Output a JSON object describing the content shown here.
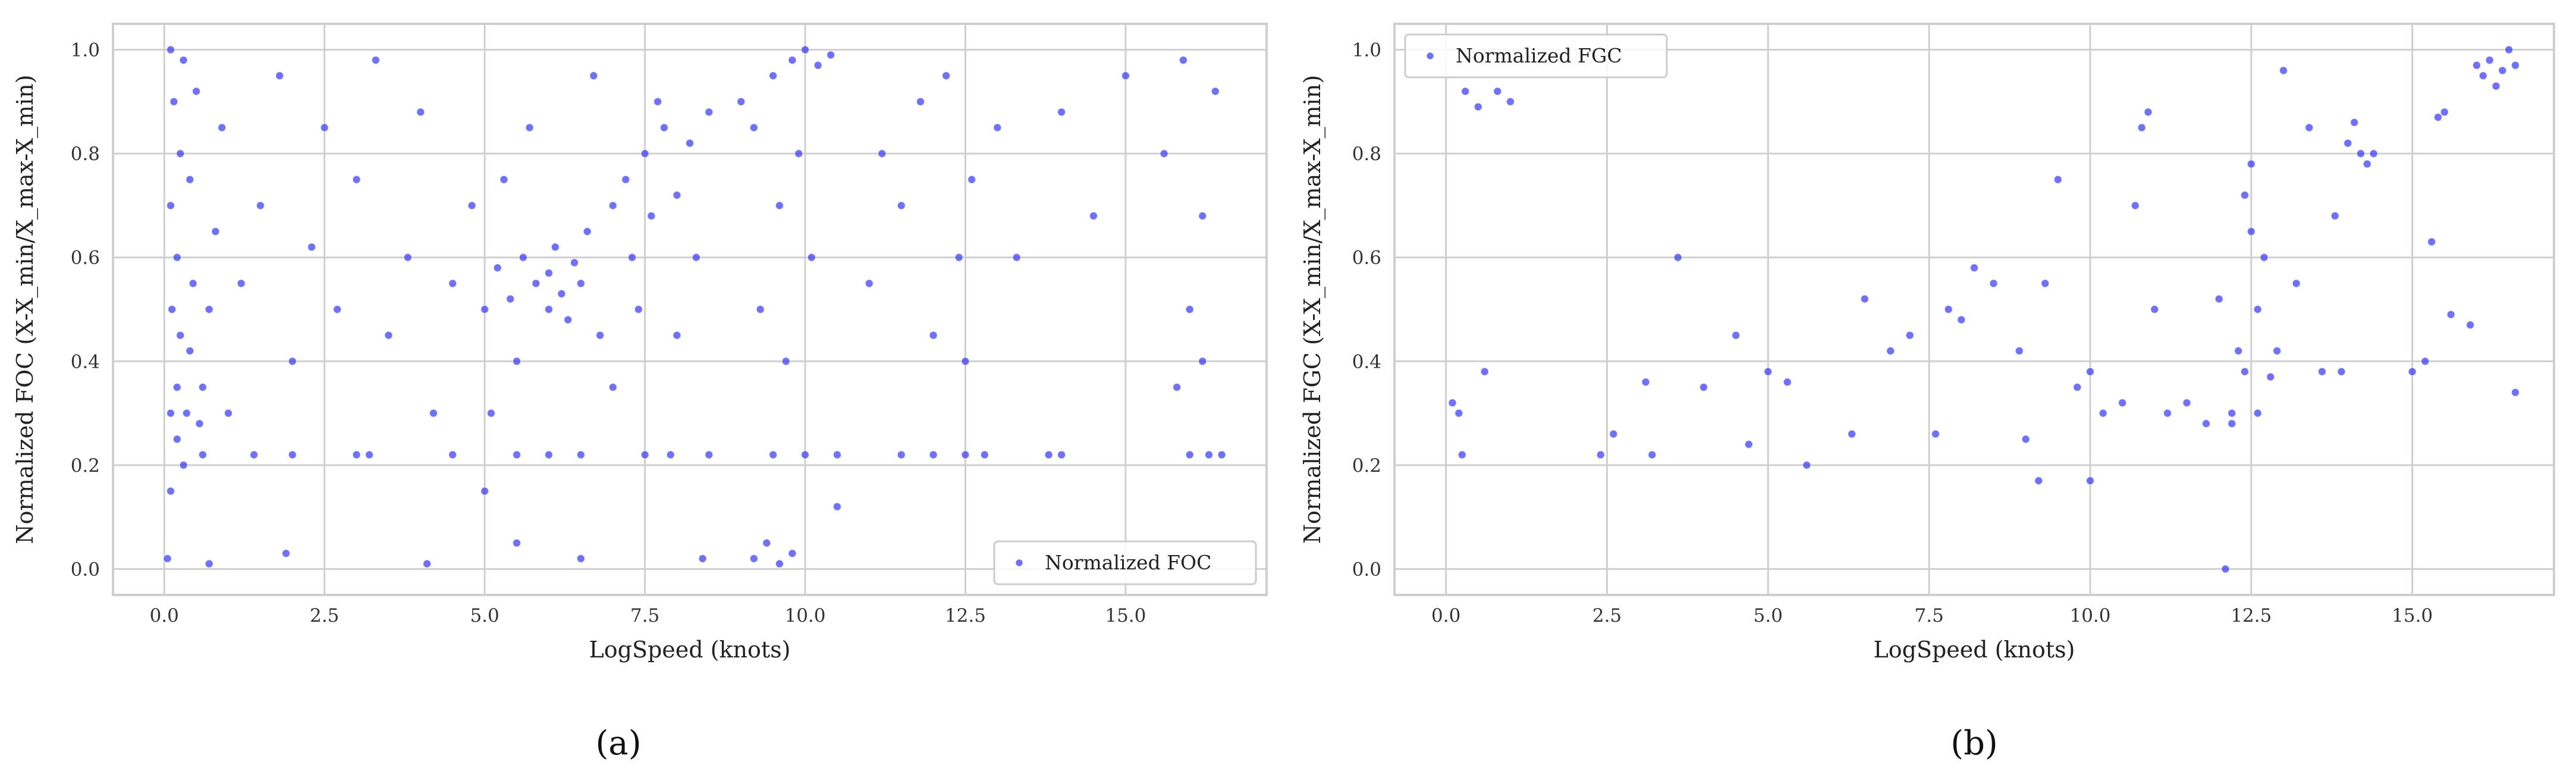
{
  "chart_data": [
    {
      "id": "a",
      "type": "scatter",
      "panel_label": "(a)",
      "title": "",
      "xlabel": "LogSpeed (knots)",
      "ylabel": "Normalized FOC (X-X_min/X_max-X_min)",
      "xlim": [
        -0.8,
        17.2
      ],
      "ylim": [
        -0.05,
        1.05
      ],
      "xticks": [
        "0.0",
        "2.5",
        "5.0",
        "7.5",
        "10.0",
        "12.5",
        "15.0"
      ],
      "yticks": [
        "0.0",
        "0.2",
        "0.4",
        "0.6",
        "0.8",
        "1.0"
      ],
      "grid": true,
      "legend": {
        "label": "Normalized FOC",
        "position": "lower-right"
      },
      "series": [
        {
          "name": "Normalized FOC",
          "points": [
            [
              0.05,
              0.02
            ],
            [
              0.1,
              0.15
            ],
            [
              0.1,
              0.3
            ],
            [
              0.12,
              0.5
            ],
            [
              0.1,
              0.7
            ],
            [
              0.15,
              0.9
            ],
            [
              0.1,
              1.0
            ],
            [
              0.2,
              0.25
            ],
            [
              0.2,
              0.35
            ],
            [
              0.25,
              0.45
            ],
            [
              0.2,
              0.6
            ],
            [
              0.25,
              0.8
            ],
            [
              0.3,
              0.98
            ],
            [
              0.3,
              0.2
            ],
            [
              0.35,
              0.3
            ],
            [
              0.4,
              0.42
            ],
            [
              0.45,
              0.55
            ],
            [
              0.4,
              0.75
            ],
            [
              0.5,
              0.92
            ],
            [
              0.55,
              0.28
            ],
            [
              0.6,
              0.35
            ],
            [
              0.7,
              0.5
            ],
            [
              0.8,
              0.65
            ],
            [
              0.9,
              0.85
            ],
            [
              0.6,
              0.22
            ],
            [
              0.7,
              0.01
            ],
            [
              1.0,
              0.3
            ],
            [
              1.2,
              0.55
            ],
            [
              1.5,
              0.7
            ],
            [
              1.8,
              0.95
            ],
            [
              2.0,
              0.4
            ],
            [
              2.3,
              0.62
            ],
            [
              2.5,
              0.85
            ],
            [
              1.4,
              0.22
            ],
            [
              1.9,
              0.03
            ],
            [
              2.7,
              0.5
            ],
            [
              3.0,
              0.75
            ],
            [
              3.3,
              0.98
            ],
            [
              3.5,
              0.45
            ],
            [
              3.8,
              0.6
            ],
            [
              4.0,
              0.88
            ],
            [
              4.2,
              0.3
            ],
            [
              4.5,
              0.55
            ],
            [
              4.8,
              0.7
            ],
            [
              3.2,
              0.22
            ],
            [
              4.1,
              0.01
            ],
            [
              5.0,
              0.5
            ],
            [
              5.2,
              0.58
            ],
            [
              5.4,
              0.52
            ],
            [
              5.6,
              0.6
            ],
            [
              5.8,
              0.55
            ],
            [
              6.0,
              0.5
            ],
            [
              6.0,
              0.57
            ],
            [
              6.1,
              0.62
            ],
            [
              6.2,
              0.53
            ],
            [
              6.3,
              0.48
            ],
            [
              6.4,
              0.59
            ],
            [
              6.5,
              0.55
            ],
            [
              6.6,
              0.65
            ],
            [
              6.8,
              0.45
            ],
            [
              7.0,
              0.7
            ],
            [
              5.5,
              0.4
            ],
            [
              5.3,
              0.75
            ],
            [
              5.7,
              0.85
            ],
            [
              6.7,
              0.95
            ],
            [
              5.0,
              0.15
            ],
            [
              5.5,
              0.05
            ],
            [
              6.0,
              0.22
            ],
            [
              6.5,
              0.02
            ],
            [
              5.1,
              0.3
            ],
            [
              7.2,
              0.75
            ],
            [
              7.5,
              0.8
            ],
            [
              7.6,
              0.68
            ],
            [
              7.8,
              0.85
            ],
            [
              7.3,
              0.6
            ],
            [
              7.7,
              0.9
            ],
            [
              8.0,
              0.72
            ],
            [
              8.2,
              0.82
            ],
            [
              8.5,
              0.88
            ],
            [
              7.4,
              0.5
            ],
            [
              8.0,
              0.45
            ],
            [
              8.3,
              0.6
            ],
            [
              7.9,
              0.22
            ],
            [
              8.4,
              0.02
            ],
            [
              7.0,
              0.35
            ],
            [
              9.0,
              0.9
            ],
            [
              9.2,
              0.85
            ],
            [
              9.5,
              0.95
            ],
            [
              9.8,
              0.98
            ],
            [
              10.0,
              1.0
            ],
            [
              10.2,
              0.97
            ],
            [
              10.4,
              0.99
            ],
            [
              9.6,
              0.7
            ],
            [
              9.9,
              0.8
            ],
            [
              10.1,
              0.6
            ],
            [
              9.3,
              0.5
            ],
            [
              9.7,
              0.4
            ],
            [
              9.2,
              0.02
            ],
            [
              9.4,
              0.05
            ],
            [
              9.6,
              0.01
            ],
            [
              9.8,
              0.03
            ],
            [
              10.0,
              0.22
            ],
            [
              10.5,
              0.12
            ],
            [
              11.0,
              0.55
            ],
            [
              11.2,
              0.8
            ],
            [
              11.5,
              0.7
            ],
            [
              11.8,
              0.9
            ],
            [
              12.0,
              0.45
            ],
            [
              12.2,
              0.95
            ],
            [
              12.4,
              0.6
            ],
            [
              12.6,
              0.75
            ],
            [
              12.8,
              0.22
            ],
            [
              12.5,
              0.4
            ],
            [
              13.0,
              0.85
            ],
            [
              13.3,
              0.6
            ],
            [
              13.8,
              0.22
            ],
            [
              14.0,
              0.88
            ],
            [
              14.5,
              0.68
            ],
            [
              15.0,
              0.95
            ],
            [
              15.6,
              0.8
            ],
            [
              15.8,
              0.35
            ],
            [
              15.9,
              0.98
            ],
            [
              16.0,
              0.5
            ],
            [
              16.2,
              0.68
            ],
            [
              16.2,
              0.4
            ],
            [
              16.3,
              0.22
            ],
            [
              16.5,
              0.22
            ],
            [
              16.4,
              0.92
            ],
            [
              2.0,
              0.22
            ],
            [
              3.0,
              0.22
            ],
            [
              4.5,
              0.22
            ],
            [
              5.5,
              0.22
            ],
            [
              6.5,
              0.22
            ],
            [
              7.5,
              0.22
            ],
            [
              8.5,
              0.22
            ],
            [
              9.5,
              0.22
            ],
            [
              10.5,
              0.22
            ],
            [
              11.5,
              0.22
            ],
            [
              12.0,
              0.22
            ],
            [
              12.5,
              0.22
            ],
            [
              14.0,
              0.22
            ],
            [
              16.0,
              0.22
            ]
          ]
        }
      ]
    },
    {
      "id": "b",
      "type": "scatter",
      "panel_label": "(b)",
      "title": "",
      "xlabel": "LogSpeed (knots)",
      "ylabel": "Normalized FGC (X-X_min/X_max-X_min)",
      "xlim": [
        -0.8,
        17.2
      ],
      "ylim": [
        -0.05,
        1.05
      ],
      "xticks": [
        "0.0",
        "2.5",
        "5.0",
        "7.5",
        "10.0",
        "12.5",
        "15.0"
      ],
      "yticks": [
        "0.0",
        "0.2",
        "0.4",
        "0.6",
        "0.8",
        "1.0"
      ],
      "grid": true,
      "legend": {
        "label": "Normalized FGC",
        "position": "upper-left"
      },
      "series": [
        {
          "name": "Normalized FGC",
          "points": [
            [
              0.1,
              0.32
            ],
            [
              0.2,
              0.3
            ],
            [
              0.25,
              0.22
            ],
            [
              0.3,
              0.92
            ],
            [
              0.5,
              0.89
            ],
            [
              0.8,
              0.92
            ],
            [
              1.0,
              0.9
            ],
            [
              0.6,
              0.38
            ],
            [
              2.4,
              0.22
            ],
            [
              2.6,
              0.26
            ],
            [
              3.1,
              0.36
            ],
            [
              3.2,
              0.22
            ],
            [
              3.6,
              0.6
            ],
            [
              4.0,
              0.35
            ],
            [
              4.5,
              0.45
            ],
            [
              4.7,
              0.24
            ],
            [
              5.0,
              0.38
            ],
            [
              5.3,
              0.36
            ],
            [
              5.6,
              0.2
            ],
            [
              6.3,
              0.26
            ],
            [
              6.5,
              0.52
            ],
            [
              6.9,
              0.42
            ],
            [
              7.2,
              0.45
            ],
            [
              7.6,
              0.26
            ],
            [
              7.8,
              0.5
            ],
            [
              8.0,
              0.48
            ],
            [
              8.2,
              0.58
            ],
            [
              8.5,
              0.55
            ],
            [
              8.9,
              0.42
            ],
            [
              9.0,
              0.25
            ],
            [
              9.2,
              0.17
            ],
            [
              9.3,
              0.55
            ],
            [
              9.5,
              0.75
            ],
            [
              9.8,
              0.35
            ],
            [
              10.0,
              0.38
            ],
            [
              10.0,
              0.17
            ],
            [
              10.2,
              0.3
            ],
            [
              10.5,
              0.32
            ],
            [
              10.7,
              0.7
            ],
            [
              10.8,
              0.85
            ],
            [
              10.9,
              0.88
            ],
            [
              11.0,
              0.5
            ],
            [
              11.2,
              0.3
            ],
            [
              11.5,
              0.32
            ],
            [
              11.8,
              0.28
            ],
            [
              12.0,
              0.52
            ],
            [
              12.1,
              0.0
            ],
            [
              12.2,
              0.3
            ],
            [
              12.3,
              0.42
            ],
            [
              12.4,
              0.38
            ],
            [
              12.4,
              0.72
            ],
            [
              12.5,
              0.78
            ],
            [
              12.5,
              0.65
            ],
            [
              12.6,
              0.5
            ],
            [
              12.6,
              0.3
            ],
            [
              12.7,
              0.6
            ],
            [
              12.8,
              0.37
            ],
            [
              12.9,
              0.42
            ],
            [
              13.0,
              0.96
            ],
            [
              13.2,
              0.55
            ],
            [
              13.4,
              0.85
            ],
            [
              13.6,
              0.38
            ],
            [
              13.8,
              0.68
            ],
            [
              14.0,
              0.82
            ],
            [
              14.1,
              0.86
            ],
            [
              14.2,
              0.8
            ],
            [
              14.3,
              0.78
            ],
            [
              14.4,
              0.8
            ],
            [
              13.9,
              0.38
            ],
            [
              15.0,
              0.38
            ],
            [
              15.2,
              0.4
            ],
            [
              15.3,
              0.63
            ],
            [
              15.4,
              0.87
            ],
            [
              15.5,
              0.88
            ],
            [
              15.6,
              0.49
            ],
            [
              16.0,
              0.97
            ],
            [
              16.1,
              0.95
            ],
            [
              16.2,
              0.98
            ],
            [
              16.3,
              0.93
            ],
            [
              16.4,
              0.96
            ],
            [
              16.5,
              1.0
            ],
            [
              16.6,
              0.97
            ],
            [
              16.6,
              0.34
            ],
            [
              15.9,
              0.47
            ],
            [
              12.2,
              0.28
            ]
          ]
        }
      ]
    }
  ]
}
